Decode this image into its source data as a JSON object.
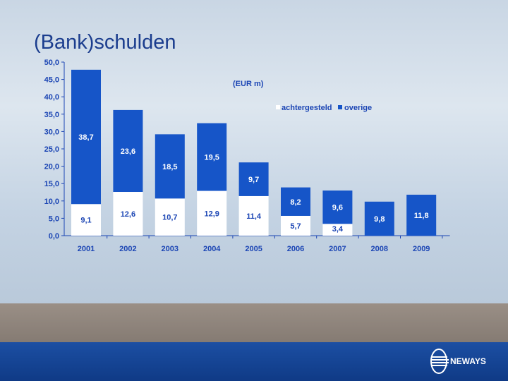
{
  "slide": {
    "title": "(Bank)schulden",
    "logo_text": "NEWAYS"
  },
  "chart_data": {
    "type": "bar",
    "stacked": true,
    "unit_label": "(EUR  m)",
    "categories": [
      "2001",
      "2002",
      "2003",
      "2004",
      "2005",
      "2006",
      "2007",
      "2008",
      "2009"
    ],
    "series": [
      {
        "name": "achtergesteld",
        "color": "#ffffff",
        "values": [
          9.1,
          12.6,
          10.7,
          12.9,
          11.4,
          5.7,
          3.4,
          null,
          null
        ],
        "labels": [
          "9,1",
          "12,6",
          "10,7",
          "12,9",
          "11,4",
          "5,7",
          "3,4",
          "",
          ""
        ]
      },
      {
        "name": "overige",
        "color": "#1655c8",
        "values": [
          38.7,
          23.6,
          18.5,
          19.5,
          9.7,
          8.2,
          9.6,
          9.8,
          11.8
        ],
        "labels": [
          "38,7",
          "23,6",
          "18,5",
          "19,5",
          "9,7",
          "8,2",
          "9,6",
          "9,8",
          "11,8"
        ]
      }
    ],
    "yticks": [
      "0,0",
      "5,0",
      "10,0",
      "15,0",
      "20,0",
      "25,0",
      "30,0",
      "35,0",
      "40,0",
      "45,0",
      "50,0"
    ],
    "ylim": [
      0,
      50
    ],
    "legend_position": "top-right",
    "grid": false
  }
}
